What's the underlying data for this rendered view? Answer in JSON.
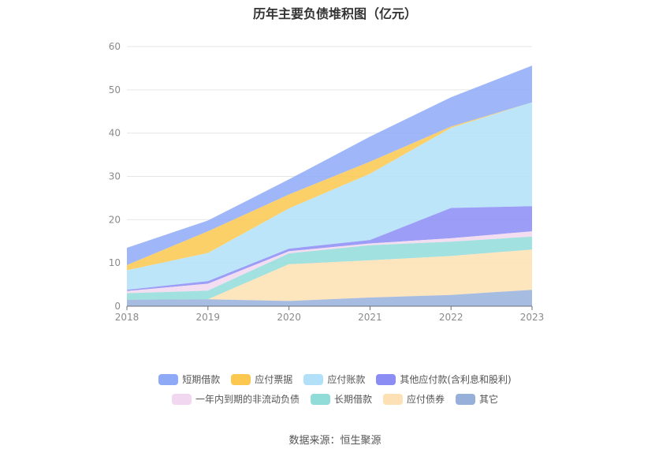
{
  "chart_data": {
    "type": "area",
    "title": "历年主要负债堆积图（亿元）",
    "stacked": true,
    "categories": [
      "2018",
      "2019",
      "2020",
      "2021",
      "2022",
      "2023"
    ],
    "ylim": [
      0,
      60
    ],
    "yticks": [
      0,
      10,
      20,
      30,
      40,
      50,
      60
    ],
    "grid": true,
    "legend_position": "bottom",
    "series": [
      {
        "name": "短期借款",
        "color": "#8eaaf7",
        "values": [
          4.0,
          2.5,
          3.5,
          5.8,
          6.8,
          8.5
        ]
      },
      {
        "name": "应付票据",
        "color": "#fcc84f",
        "values": [
          1.2,
          5.0,
          3.2,
          2.8,
          0.3,
          0.0
        ]
      },
      {
        "name": "应付账款",
        "color": "#b2e0f9",
        "values": [
          4.5,
          6.5,
          9.3,
          15.3,
          18.5,
          24.0
        ]
      },
      {
        "name": "其他应付款(含利息和股利)",
        "color": "#8b8cf4",
        "values": [
          0.3,
          0.6,
          0.6,
          0.8,
          7.0,
          5.8
        ]
      },
      {
        "name": "一年内到期的非流动负债",
        "color": "#f1d7ef",
        "values": [
          0.5,
          1.6,
          0.5,
          0.4,
          0.8,
          1.2
        ]
      },
      {
        "name": "长期借款",
        "color": "#91dcd9",
        "values": [
          1.5,
          2.0,
          2.5,
          3.5,
          3.3,
          3.0
        ]
      },
      {
        "name": "应付债券",
        "color": "#fde0b3",
        "values": [
          0.0,
          0.0,
          8.5,
          8.6,
          9.0,
          9.3
        ]
      },
      {
        "name": "其它",
        "color": "#97b0da",
        "values": [
          1.5,
          1.6,
          1.2,
          2.0,
          2.6,
          3.8
        ]
      }
    ]
  },
  "source_text": "数据来源：恒生聚源"
}
